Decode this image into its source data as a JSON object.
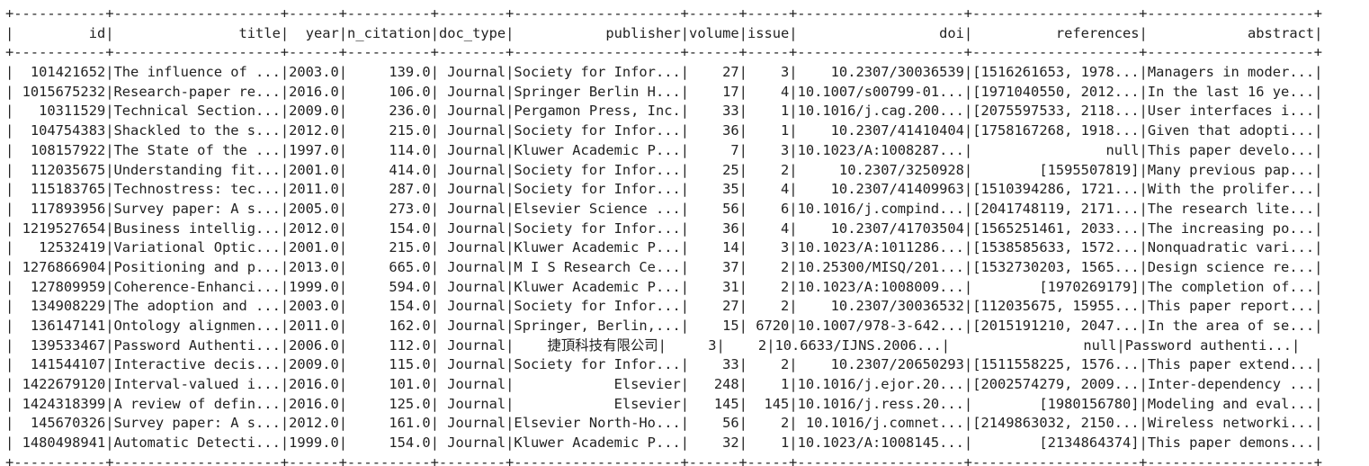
{
  "table": {
    "columns": [
      {
        "name": "id",
        "width": 11,
        "align": "right"
      },
      {
        "name": "title",
        "width": 20,
        "align": "right"
      },
      {
        "name": "year",
        "width": 6,
        "align": "right"
      },
      {
        "name": "n_citation",
        "width": 10,
        "align": "right"
      },
      {
        "name": "doc_type",
        "width": 8,
        "align": "right"
      },
      {
        "name": "publisher",
        "width": 20,
        "align": "right"
      },
      {
        "name": "volume",
        "width": 6,
        "align": "right"
      },
      {
        "name": "issue",
        "width": 5,
        "align": "right"
      },
      {
        "name": "doi",
        "width": 20,
        "align": "right"
      },
      {
        "name": "references",
        "width": 20,
        "align": "right"
      },
      {
        "name": "abstract",
        "width": 20,
        "align": "right"
      }
    ],
    "rows": [
      [
        "101421652",
        "The influence of ...",
        "2003.0",
        "139.0",
        "Journal",
        "Society for Infor...",
        "27",
        "3",
        "10.2307/30036539",
        "[1516261653, 1978...",
        "Managers in moder..."
      ],
      [
        "1015675232",
        "Research-paper re...",
        "2016.0",
        "106.0",
        "Journal",
        "Springer Berlin H...",
        "17",
        "4",
        "10.1007/s00799-01...",
        "[1971040550, 2012...",
        "In the last 16 ye..."
      ],
      [
        "10311529",
        "Technical Section...",
        "2009.0",
        "236.0",
        "Journal",
        "Pergamon Press, Inc.",
        "33",
        "1",
        "10.1016/j.cag.200...",
        "[2075597533, 2118...",
        "User interfaces i..."
      ],
      [
        "104754383",
        "Shackled to the s...",
        "2012.0",
        "215.0",
        "Journal",
        "Society for Infor...",
        "36",
        "1",
        "10.2307/41410404",
        "[1758167268, 1918...",
        "Given that adopti..."
      ],
      [
        "108157922",
        "The State of the ...",
        "1997.0",
        "114.0",
        "Journal",
        "Kluwer Academic P...",
        "7",
        "3",
        "10.1023/A:1008287...",
        "null",
        "This paper develo..."
      ],
      [
        "112035675",
        "Understanding fit...",
        "2001.0",
        "414.0",
        "Journal",
        "Society for Infor...",
        "25",
        "2",
        "10.2307/3250928",
        "[1595507819]",
        "Many previous pap..."
      ],
      [
        "115183765",
        "Technostress: tec...",
        "2011.0",
        "287.0",
        "Journal",
        "Society for Infor...",
        "35",
        "4",
        "10.2307/41409963",
        "[1510394286, 1721...",
        "With the prolifer..."
      ],
      [
        "117893956",
        "Survey paper: A s...",
        "2005.0",
        "273.0",
        "Journal",
        "Elsevier Science ...",
        "56",
        "6",
        "10.1016/j.compind...",
        "[2041748119, 2171...",
        "The research lite..."
      ],
      [
        "1219527654",
        "Business intellig...",
        "2012.0",
        "154.0",
        "Journal",
        "Society for Infor...",
        "36",
        "4",
        "10.2307/41703504",
        "[1565251461, 2033...",
        "The increasing po..."
      ],
      [
        "12532419",
        "Variational Optic...",
        "2001.0",
        "215.0",
        "Journal",
        "Kluwer Academic P...",
        "14",
        "3",
        "10.1023/A:1011286...",
        "[1538585633, 1572...",
        "Nonquadratic vari..."
      ],
      [
        "1276866904",
        "Positioning and p...",
        "2013.0",
        "665.0",
        "Journal",
        "M I S Research Ce...",
        "37",
        "2",
        "10.25300/MISQ/201...",
        "[1532730203, 1565...",
        "Design science re..."
      ],
      [
        "127809959",
        "Coherence-Enhanci...",
        "1999.0",
        "594.0",
        "Journal",
        "Kluwer Academic P...",
        "31",
        "2",
        "10.1023/A:1008009...",
        "[1970269179]",
        "The completion of..."
      ],
      [
        "134908229",
        "The adoption and ...",
        "2003.0",
        "154.0",
        "Journal",
        "Society for Infor...",
        "27",
        "2",
        "10.2307/30036532",
        "[112035675, 15955...",
        "This paper report..."
      ],
      [
        "136147141",
        "Ontology alignmen...",
        "2011.0",
        "162.0",
        "Journal",
        "Springer, Berlin,...",
        "15",
        "6720",
        "10.1007/978-3-642...",
        "[2015191210, 2047...",
        "In the area of se..."
      ],
      [
        "139533467",
        "Password Authenti...",
        "2006.0",
        "112.0",
        "Journal",
        "捷頂科技有限公司",
        "3",
        "2",
        "10.6633/IJNS.2006...",
        "null",
        "Password authenti..."
      ],
      [
        "141544107",
        "Interactive decis...",
        "2009.0",
        "115.0",
        "Journal",
        "Society for Infor...",
        "33",
        "2",
        "10.2307/20650293",
        "[1511558225, 1576...",
        "This paper extend..."
      ],
      [
        "1422679120",
        "Interval-valued i...",
        "2016.0",
        "101.0",
        "Journal",
        "Elsevier",
        "248",
        "1",
        "10.1016/j.ejor.20...",
        "[2002574279, 2009...",
        "Inter-dependency ..."
      ],
      [
        "1424318399",
        "A review of defin...",
        "2016.0",
        "125.0",
        "Journal",
        "Elsevier",
        "145",
        "145",
        "10.1016/j.ress.20...",
        "[1980156780]",
        "Modeling and eval..."
      ],
      [
        "145670326",
        "Survey paper: A s...",
        "2012.0",
        "161.0",
        "Journal",
        "Elsevier North-Ho...",
        "56",
        "2",
        "10.1016/j.comnet...",
        "[2149863032, 2150...",
        "Wireless networki..."
      ],
      [
        "1480498941",
        "Automatic Detecti...",
        "1999.0",
        "154.0",
        "Journal",
        "Kluwer Academic P...",
        "32",
        "1",
        "10.1023/A:1008145...",
        "[2134864374]",
        "This paper demons..."
      ]
    ]
  }
}
